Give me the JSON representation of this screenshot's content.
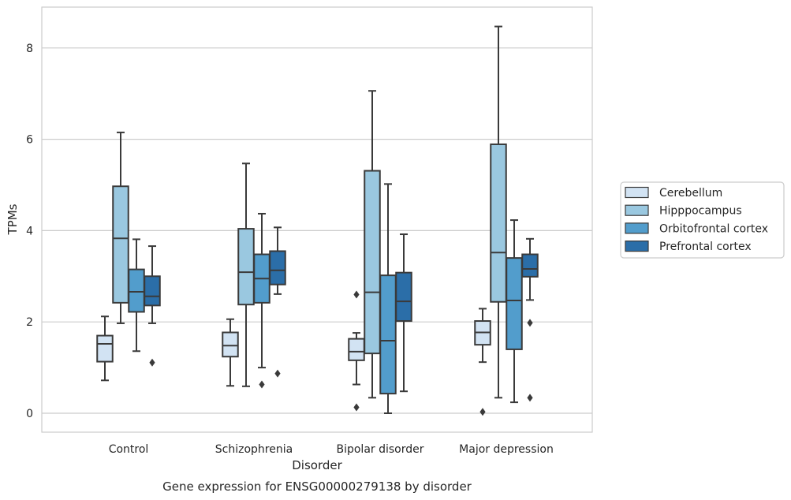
{
  "chart_data": {
    "type": "box",
    "caption": "Gene expression for ENSG00000279138 by disorder",
    "xlabel": "Disorder",
    "ylabel": "TPMs",
    "ylim": [
      -0.4,
      8.9
    ],
    "yticks": [
      0,
      2,
      4,
      6,
      8
    ],
    "grid": "horizontal",
    "legend_position": "right",
    "categories": [
      "Control",
      "Schizophrenia",
      "Bipolar disorder",
      "Major depression"
    ],
    "series": [
      {
        "name": "Cerebellum",
        "color": "#d2e3f3",
        "boxes": [
          {
            "whislo": 0.72,
            "q1": 1.13,
            "med": 1.52,
            "q3": 1.7,
            "whishi": 2.12,
            "fliers": []
          },
          {
            "whislo": 0.6,
            "q1": 1.24,
            "med": 1.48,
            "q3": 1.77,
            "whishi": 2.06,
            "fliers": []
          },
          {
            "whislo": 0.63,
            "q1": 1.16,
            "med": 1.35,
            "q3": 1.63,
            "whishi": 1.76,
            "fliers": [
              2.6,
              0.13
            ]
          },
          {
            "whislo": 1.12,
            "q1": 1.5,
            "med": 1.77,
            "q3": 2.02,
            "whishi": 2.29,
            "fliers": [
              0.03
            ]
          }
        ]
      },
      {
        "name": "Hipppocampus",
        "color": "#9ac8e0",
        "boxes": [
          {
            "whislo": 1.97,
            "q1": 2.42,
            "med": 3.83,
            "q3": 4.97,
            "whishi": 6.15,
            "fliers": []
          },
          {
            "whislo": 0.59,
            "q1": 2.38,
            "med": 3.09,
            "q3": 4.04,
            "whishi": 5.47,
            "fliers": []
          },
          {
            "whislo": 0.34,
            "q1": 1.31,
            "med": 2.65,
            "q3": 5.31,
            "whishi": 7.06,
            "fliers": []
          },
          {
            "whislo": 0.34,
            "q1": 2.44,
            "med": 3.52,
            "q3": 5.89,
            "whishi": 8.47,
            "fliers": []
          }
        ]
      },
      {
        "name": "Orbitofrontal cortex",
        "color": "#529dcc",
        "boxes": [
          {
            "whislo": 1.36,
            "q1": 2.22,
            "med": 2.66,
            "q3": 3.15,
            "whishi": 3.81,
            "fliers": []
          },
          {
            "whislo": 1.0,
            "q1": 2.42,
            "med": 2.95,
            "q3": 3.48,
            "whishi": 4.37,
            "fliers": [
              0.63
            ]
          },
          {
            "whislo": 0.0,
            "q1": 0.43,
            "med": 1.59,
            "q3": 3.02,
            "whishi": 5.02,
            "fliers": []
          },
          {
            "whislo": 0.24,
            "q1": 1.4,
            "med": 2.47,
            "q3": 3.4,
            "whishi": 4.23,
            "fliers": []
          }
        ]
      },
      {
        "name": "Prefrontal cortex",
        "color": "#2b6ea8",
        "boxes": [
          {
            "whislo": 1.97,
            "q1": 2.36,
            "med": 2.56,
            "q3": 3.0,
            "whishi": 3.66,
            "fliers": [
              1.11
            ]
          },
          {
            "whislo": 2.61,
            "q1": 2.82,
            "med": 3.13,
            "q3": 3.55,
            "whishi": 4.07,
            "fliers": [
              0.87
            ]
          },
          {
            "whislo": 0.48,
            "q1": 2.02,
            "med": 2.45,
            "q3": 3.08,
            "whishi": 3.92,
            "fliers": []
          },
          {
            "whislo": 2.48,
            "q1": 2.99,
            "med": 3.16,
            "q3": 3.48,
            "whishi": 3.82,
            "fliers": [
              1.98,
              0.34
            ]
          }
        ]
      }
    ]
  }
}
